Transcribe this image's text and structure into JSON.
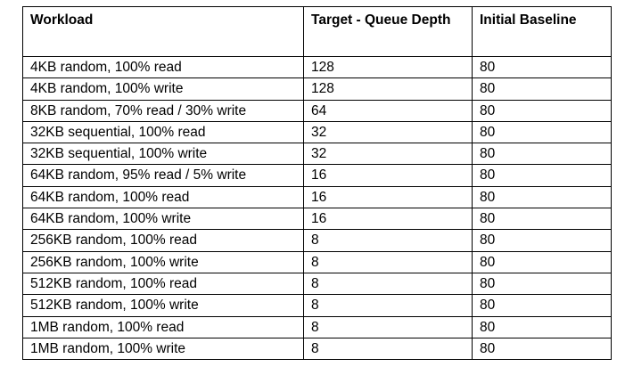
{
  "table": {
    "headers": {
      "workload": "Workload",
      "queue_depth": "Target - Queue Depth",
      "baseline": "Initial Baseline"
    },
    "rows": [
      {
        "workload": "4KB random, 100% read",
        "queue_depth": "128",
        "baseline": "80"
      },
      {
        "workload": "4KB random, 100% write",
        "queue_depth": "128",
        "baseline": "80"
      },
      {
        "workload": "8KB random, 70% read / 30% write",
        "queue_depth": "64",
        "baseline": "80"
      },
      {
        "workload": "32KB sequential, 100% read",
        "queue_depth": "32",
        "baseline": "80"
      },
      {
        "workload": "32KB sequential, 100% write",
        "queue_depth": "32",
        "baseline": "80"
      },
      {
        "workload": "64KB random, 95% read / 5% write",
        "queue_depth": "16",
        "baseline": "80"
      },
      {
        "workload": "64KB random, 100% read",
        "queue_depth": "16",
        "baseline": "80"
      },
      {
        "workload": "64KB random, 100% write",
        "queue_depth": "16",
        "baseline": "80"
      },
      {
        "workload": "256KB random, 100% read",
        "queue_depth": "8",
        "baseline": "80"
      },
      {
        "workload": "256KB random, 100% write",
        "queue_depth": "8",
        "baseline": "80"
      },
      {
        "workload": "512KB random, 100% read",
        "queue_depth": "8",
        "baseline": "80"
      },
      {
        "workload": "512KB random, 100% write",
        "queue_depth": "8",
        "baseline": "80"
      },
      {
        "workload": "1MB random, 100% read",
        "queue_depth": "8",
        "baseline": "80"
      },
      {
        "workload": "1MB random, 100% write",
        "queue_depth": "8",
        "baseline": "80"
      }
    ]
  }
}
